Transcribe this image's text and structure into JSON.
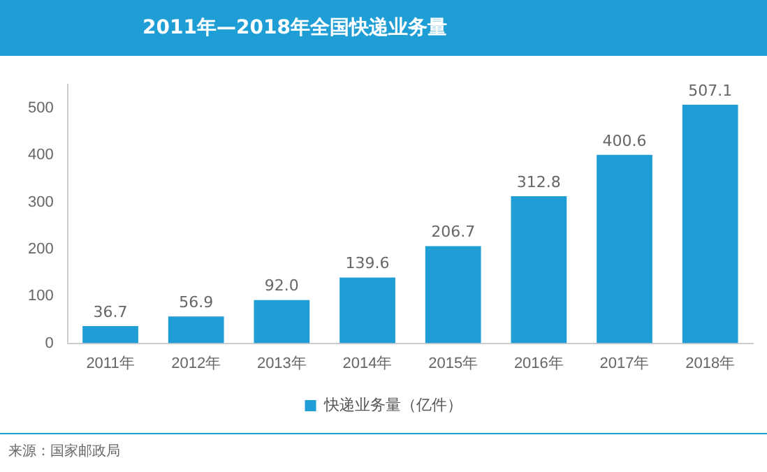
{
  "chart_data": {
    "type": "bar",
    "title": "2011年—2018年全国快递业务量",
    "categories": [
      "2011年",
      "2012年",
      "2013年",
      "2014年",
      "2015年",
      "2016年",
      "2017年",
      "2018年"
    ],
    "series": [
      {
        "name": "快递业务量（亿件）",
        "color": "#1f9ed6",
        "values": [
          36.7,
          56.9,
          92.0,
          139.6,
          206.7,
          312.8,
          400.6,
          507.1
        ],
        "value_labels": [
          "36.7",
          "56.9",
          "92.0",
          "139.6",
          "206.7",
          "312.8",
          "400.6",
          "507.1"
        ]
      }
    ],
    "ylim": [
      0,
      550
    ],
    "yticks": [
      0,
      100,
      200,
      300,
      400,
      500
    ],
    "grid": false,
    "legend": "bottom",
    "annotations": [
      "来源：国家邮政局"
    ]
  }
}
